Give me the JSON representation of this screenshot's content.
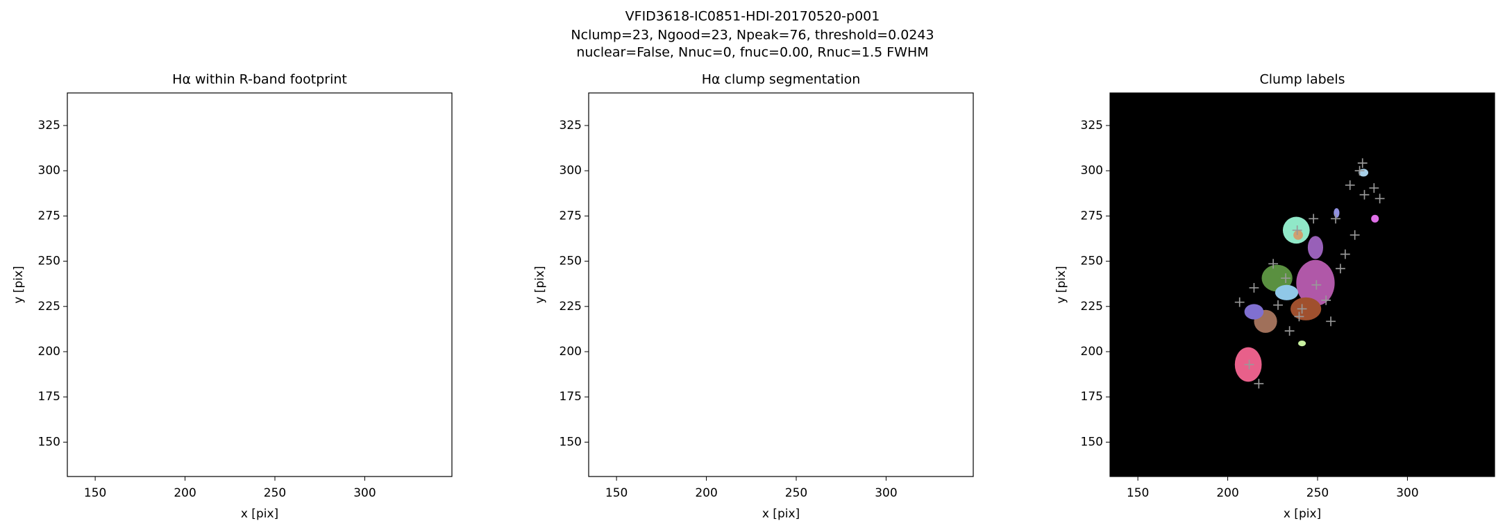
{
  "title_lines": [
    "VFID3618-IC0851-HDI-20170520-p001",
    "Nclump=23, Ngood=23, Npeak=76, threshold=0.0243",
    "nuclear=False, Nnuc=0, fnuc=0.00, Rnuc=1.5 FWHM"
  ],
  "chart_data": [
    {
      "type": "image",
      "title": "Hα within R-band footprint",
      "x_label": "x [pix]",
      "y_label": "y [pix]",
      "xlim": [
        134.5,
        348.5
      ],
      "ylim": [
        131,
        343
      ],
      "xticks": [
        150,
        200,
        250,
        300
      ],
      "yticks": [
        150,
        175,
        200,
        225,
        250,
        275,
        300,
        325
      ],
      "background": "#ffffff"
    },
    {
      "type": "image",
      "title": "Hα clump segmentation",
      "x_label": "x [pix]",
      "y_label": "y [pix]",
      "xlim": [
        134.5,
        348.5
      ],
      "ylim": [
        131,
        343
      ],
      "xticks": [
        150,
        200,
        250,
        300
      ],
      "yticks": [
        150,
        175,
        200,
        225,
        250,
        275,
        300,
        325
      ],
      "background": "#ffffff"
    },
    {
      "type": "image",
      "title": "Clump labels",
      "x_label": "x [pix]",
      "y_label": "y [pix]",
      "xlim": [
        134.5,
        348.5
      ],
      "ylim": [
        131,
        343
      ],
      "xticks": [
        150,
        200,
        250,
        300
      ],
      "yticks": [
        150,
        175,
        200,
        225,
        250,
        275,
        300,
        325
      ],
      "background": "#000000"
    }
  ]
}
